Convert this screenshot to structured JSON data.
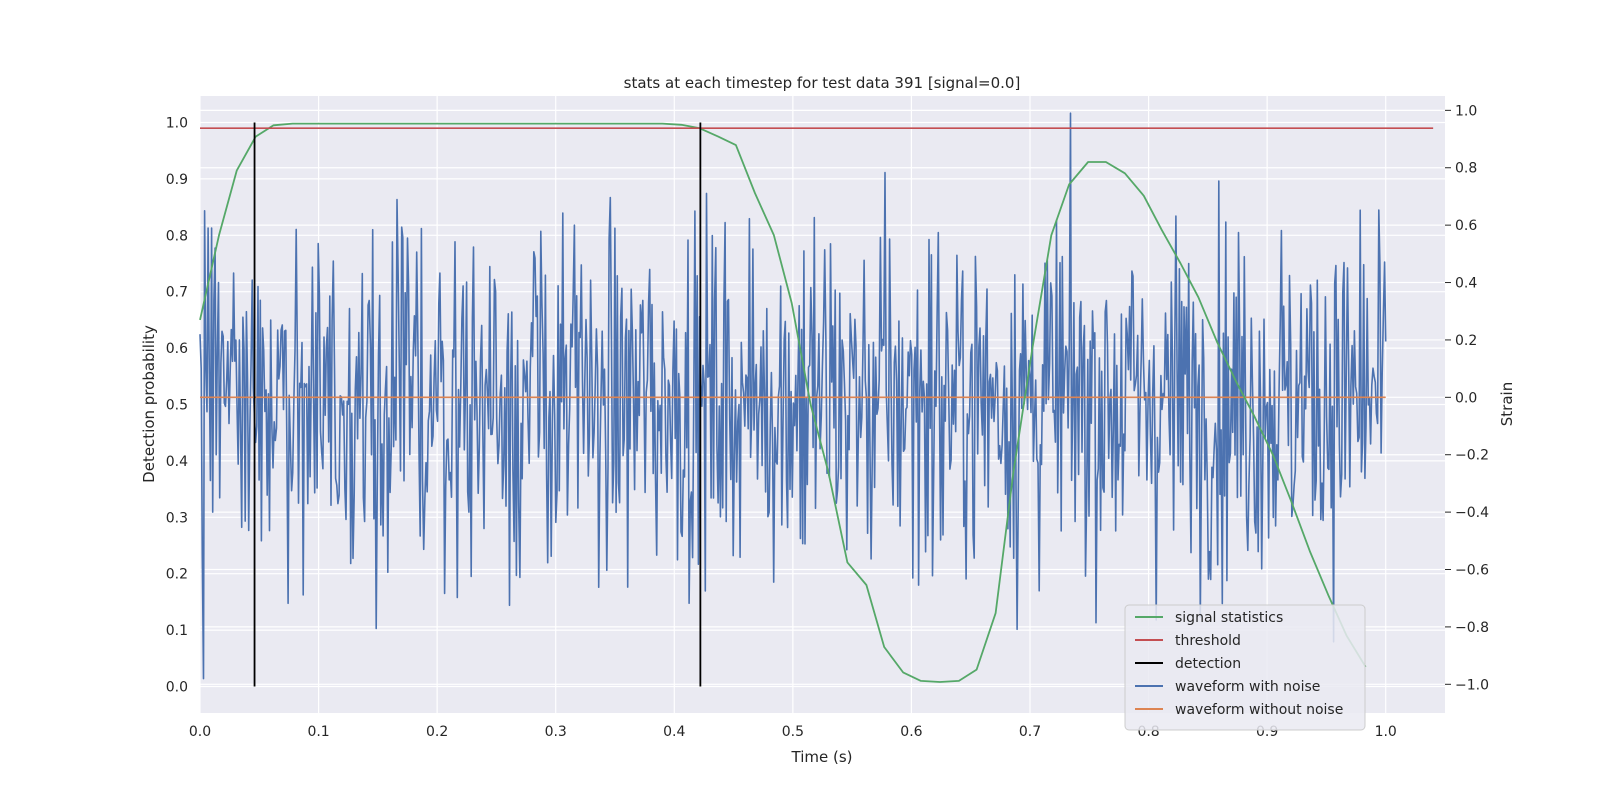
{
  "chart_data": {
    "type": "line",
    "title": "stats at each timestep for test data 391 [signal=0.0]",
    "xlabel": "Time (s)",
    "ylabel": "Detection probability",
    "y2label": "Strain",
    "xlim": [
      0.0,
      1.05
    ],
    "ylim": [
      -0.047,
      1.047
    ],
    "y2lim": [
      -1.1,
      1.05
    ],
    "xticks": [
      0.0,
      0.1,
      0.2,
      0.3,
      0.4,
      0.5,
      0.6,
      0.7,
      0.8,
      0.9,
      1.0
    ],
    "yticks": [
      0.0,
      0.1,
      0.2,
      0.3,
      0.4,
      0.5,
      0.6,
      0.7,
      0.8,
      0.9,
      1.0
    ],
    "y2ticks": [
      -1.0,
      -0.8,
      -0.6,
      -0.4,
      -0.2,
      0.0,
      0.2,
      0.4,
      0.6,
      0.8,
      1.0
    ],
    "grid": true,
    "legend_position": "bottom-right",
    "legend": [
      "signal statistics",
      "threshold",
      "detection",
      "waveform with noise",
      "waveform without noise"
    ],
    "colors": {
      "signal_statistics": "#55a868",
      "threshold": "#c44e52",
      "detection": "#000000",
      "waveform_with_noise": "#4c72b0",
      "waveform_without_noise": "#dd8452",
      "plot_background": "#eaeaf2",
      "grid": "#ffffff"
    },
    "series": [
      {
        "name": "signal statistics",
        "axis": "left",
        "x": [
          0.0,
          0.016,
          0.031,
          0.047,
          0.062,
          0.078,
          0.094,
          0.109,
          0.125,
          0.14,
          0.156,
          0.172,
          0.187,
          0.203,
          0.218,
          0.234,
          0.25,
          0.265,
          0.281,
          0.296,
          0.312,
          0.328,
          0.343,
          0.359,
          0.374,
          0.39,
          0.406,
          0.421,
          0.437,
          0.452,
          0.468,
          0.484,
          0.499,
          0.515,
          0.53,
          0.546,
          0.562,
          0.577,
          0.593,
          0.608,
          0.624,
          0.64,
          0.655,
          0.671,
          0.686,
          0.702,
          0.718,
          0.733,
          0.749,
          0.764,
          0.78,
          0.796,
          0.811,
          0.827,
          0.842,
          0.858,
          0.874,
          0.889,
          0.905,
          0.92,
          0.936,
          0.952,
          0.967,
          0.983
        ],
        "y": [
          0.65,
          0.8,
          0.915,
          0.975,
          0.995,
          0.998,
          0.998,
          0.998,
          0.998,
          0.998,
          0.998,
          0.998,
          0.998,
          0.998,
          0.998,
          0.998,
          0.998,
          0.998,
          0.998,
          0.998,
          0.998,
          0.998,
          0.998,
          0.998,
          0.998,
          0.998,
          0.996,
          0.99,
          0.975,
          0.96,
          0.875,
          0.8,
          0.68,
          0.5,
          0.38,
          0.22,
          0.18,
          0.07,
          0.025,
          0.01,
          0.008,
          0.01,
          0.03,
          0.13,
          0.38,
          0.6,
          0.8,
          0.89,
          0.93,
          0.93,
          0.91,
          0.87,
          0.81,
          0.75,
          0.69,
          0.61,
          0.54,
          0.48,
          0.41,
          0.33,
          0.24,
          0.16,
          0.09,
          0.035
        ]
      },
      {
        "name": "threshold",
        "axis": "left",
        "x": [
          0.0,
          1.04
        ],
        "y": [
          0.99,
          0.99
        ]
      },
      {
        "name": "detection",
        "axis": "left",
        "x": [
          0.046,
          0.422
        ],
        "y": [
          1.0,
          1.0
        ]
      },
      {
        "name": "waveform without noise",
        "axis": "right",
        "x": [
          0.0,
          1.0
        ],
        "y": [
          0.0,
          0.0
        ]
      },
      {
        "name": "waveform with noise",
        "axis": "right",
        "x_range": [
          0.0,
          1.0
        ],
        "points": 1024,
        "y_min": -1.0,
        "y_max": 0.99,
        "y_std": 0.3,
        "y_sample": [
          0.22,
          0.1,
          -0.55,
          -0.98,
          0.65,
          0.1,
          -0.05,
          0.59,
          0.09,
          -0.29,
          0.59,
          -0.4,
          0.34,
          0.52,
          -0.2,
          0.18,
          0.4,
          -0.35,
          0.12,
          0.23
        ]
      }
    ]
  }
}
